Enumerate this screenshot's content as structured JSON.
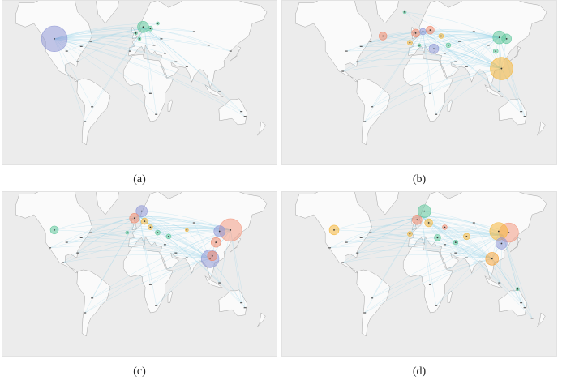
{
  "figure": {
    "panels": [
      {
        "id": "a",
        "caption": "(a)",
        "bubbles": [
          {
            "lon": -112,
            "lat": 50,
            "r": 16,
            "color": "#8f97d6"
          },
          {
            "lon": 10,
            "lat": 58,
            "r": 7,
            "color": "#5ec79b"
          },
          {
            "lon": 20,
            "lat": 57,
            "r": 3,
            "color": "#5ec79b"
          },
          {
            "lon": 0,
            "lat": 54,
            "r": 2,
            "color": "#5ec79b"
          },
          {
            "lon": 30,
            "lat": 60,
            "r": 2,
            "color": "#5ec79b"
          },
          {
            "lon": 5,
            "lat": 50,
            "r": 2,
            "color": "#5ec79b"
          }
        ],
        "hubs": [
          [
            -112,
            50
          ],
          [
            12,
            57
          ]
        ],
        "dots": [
          [
            -75,
            44
          ],
          [
            -95,
            40
          ],
          [
            -80,
            30
          ],
          [
            -62,
            48
          ],
          [
            25,
            45
          ],
          [
            40,
            38
          ],
          [
            55,
            30
          ],
          [
            70,
            25
          ],
          [
            100,
            45
          ],
          [
            130,
            40
          ],
          [
            150,
            -30
          ],
          [
            -60,
            -20
          ],
          [
            -70,
            -35
          ],
          [
            20,
            -5
          ],
          [
            28,
            -28
          ],
          [
            115,
            -3
          ],
          [
            145,
            -25
          ],
          [
            -8,
            40
          ],
          [
            35,
            50
          ],
          [
            80,
            55
          ]
        ]
      },
      {
        "id": "b",
        "caption": "(b)",
        "bubbles": [
          {
            "lon": 118,
            "lat": 23,
            "r": 14,
            "color": "#f5b63a"
          },
          {
            "lon": 115,
            "lat": 51,
            "r": 8,
            "color": "#5ec79b"
          },
          {
            "lon": 125,
            "lat": 50,
            "r": 6,
            "color": "#5ec79b"
          },
          {
            "lon": 110,
            "lat": 40,
            "r": 3,
            "color": "#5ec79b"
          },
          {
            "lon": 0,
            "lat": 54,
            "r": 5,
            "color": "#f08a6d"
          },
          {
            "lon": 10,
            "lat": 55,
            "r": 4,
            "color": "#8f97d6"
          },
          {
            "lon": 20,
            "lat": 56,
            "r": 5,
            "color": "#f08a6d"
          },
          {
            "lon": 25,
            "lat": 42,
            "r": 6,
            "color": "#8f97d6"
          },
          {
            "lon": -45,
            "lat": 52,
            "r": 5,
            "color": "#f08a6d"
          },
          {
            "lon": 35,
            "lat": 52,
            "r": 3,
            "color": "#f5b63a"
          },
          {
            "lon": 45,
            "lat": 45,
            "r": 3,
            "color": "#5ec79b"
          },
          {
            "lon": -8,
            "lat": 47,
            "r": 3,
            "color": "#f5b63a"
          },
          {
            "lon": 5,
            "lat": 45,
            "r": 2,
            "color": "#5ec79b"
          },
          {
            "lon": -15,
            "lat": 66,
            "r": 2,
            "color": "#5ec79b"
          }
        ],
        "hubs": [
          [
            118,
            23
          ],
          [
            115,
            51
          ],
          [
            10,
            55
          ]
        ],
        "dots": [
          [
            -75,
            44
          ],
          [
            -95,
            40
          ],
          [
            -80,
            30
          ],
          [
            -62,
            48
          ],
          [
            40,
            38
          ],
          [
            55,
            30
          ],
          [
            70,
            25
          ],
          [
            100,
            45
          ],
          [
            150,
            -30
          ],
          [
            -60,
            -20
          ],
          [
            -70,
            -35
          ],
          [
            20,
            -5
          ],
          [
            28,
            -28
          ],
          [
            115,
            -3
          ],
          [
            145,
            -25
          ],
          [
            80,
            55
          ],
          [
            60,
            48
          ],
          [
            -100,
            20
          ]
        ]
      },
      {
        "id": "c",
        "caption": "(c)",
        "bubbles": [
          {
            "lon": 130,
            "lat": 50,
            "r": 14,
            "color": "#f39b83"
          },
          {
            "lon": 115,
            "lat": 49,
            "r": 7,
            "color": "#8f97d6"
          },
          {
            "lon": 110,
            "lat": 40,
            "r": 6,
            "color": "#f08a6d"
          },
          {
            "lon": 102,
            "lat": 24,
            "r": 11,
            "color": "#8f97d6"
          },
          {
            "lon": 105,
            "lat": 27,
            "r": 6,
            "color": "#f08a6d"
          },
          {
            "lon": 8,
            "lat": 62,
            "r": 7,
            "color": "#8f97d6"
          },
          {
            "lon": -2,
            "lat": 58,
            "r": 6,
            "color": "#f08a6d"
          },
          {
            "lon": 12,
            "lat": 56,
            "r": 4,
            "color": "#f5b63a"
          },
          {
            "lon": -112,
            "lat": 50,
            "r": 5,
            "color": "#5ec79b"
          },
          {
            "lon": 30,
            "lat": 48,
            "r": 3,
            "color": "#5ec79b"
          },
          {
            "lon": 20,
            "lat": 52,
            "r": 3,
            "color": "#f5b63a"
          },
          {
            "lon": 45,
            "lat": 45,
            "r": 3,
            "color": "#5ec79b"
          },
          {
            "lon": 70,
            "lat": 50,
            "r": 2,
            "color": "#f5b63a"
          },
          {
            "lon": -12,
            "lat": 48,
            "r": 2,
            "color": "#5ec79b"
          }
        ],
        "hubs": [
          [
            130,
            50
          ],
          [
            102,
            24
          ],
          [
            5,
            59
          ]
        ],
        "dots": [
          [
            -75,
            44
          ],
          [
            -95,
            40
          ],
          [
            -80,
            30
          ],
          [
            -62,
            48
          ],
          [
            40,
            38
          ],
          [
            55,
            30
          ],
          [
            70,
            25
          ],
          [
            150,
            -30
          ],
          [
            -60,
            -20
          ],
          [
            -70,
            -35
          ],
          [
            20,
            -5
          ],
          [
            28,
            -28
          ],
          [
            115,
            -3
          ],
          [
            145,
            -25
          ],
          [
            80,
            55
          ],
          [
            -100,
            20
          ],
          [
            -118,
            35
          ]
        ]
      },
      {
        "id": "d",
        "caption": "(d)",
        "bubbles": [
          {
            "lon": 128,
            "lat": 48,
            "r": 12,
            "color": "#f39b83"
          },
          {
            "lon": 114,
            "lat": 49,
            "r": 11,
            "color": "#f5b63a"
          },
          {
            "lon": 118,
            "lat": 39,
            "r": 7,
            "color": "#8f97d6"
          },
          {
            "lon": 105,
            "lat": 24,
            "r": 8,
            "color": "#f5a43a"
          },
          {
            "lon": 12,
            "lat": 62,
            "r": 8,
            "color": "#5ec79b"
          },
          {
            "lon": 2,
            "lat": 57,
            "r": 6,
            "color": "#f08a6d"
          },
          {
            "lon": 18,
            "lat": 55,
            "r": 5,
            "color": "#f5b63a"
          },
          {
            "lon": -112,
            "lat": 50,
            "r": 6,
            "color": "#f5b63a"
          },
          {
            "lon": 70,
            "lat": 45,
            "r": 4,
            "color": "#f5b63a"
          },
          {
            "lon": 30,
            "lat": 44,
            "r": 4,
            "color": "#5ec79b"
          },
          {
            "lon": 40,
            "lat": 52,
            "r": 3,
            "color": "#f08a6d"
          },
          {
            "lon": 55,
            "lat": 40,
            "r": 3,
            "color": "#5ec79b"
          },
          {
            "lon": -8,
            "lat": 47,
            "r": 3,
            "color": "#f5b63a"
          },
          {
            "lon": 140,
            "lat": -10,
            "r": 2,
            "color": "#5ec79b"
          }
        ],
        "hubs": [
          [
            120,
            46
          ],
          [
            105,
            24
          ],
          [
            8,
            59
          ]
        ],
        "dots": [
          [
            -75,
            44
          ],
          [
            -95,
            40
          ],
          [
            -80,
            30
          ],
          [
            -62,
            48
          ],
          [
            40,
            38
          ],
          [
            55,
            30
          ],
          [
            70,
            25
          ],
          [
            150,
            -30
          ],
          [
            -60,
            -20
          ],
          [
            -70,
            -35
          ],
          [
            20,
            -5
          ],
          [
            28,
            -28
          ],
          [
            115,
            -3
          ],
          [
            145,
            -25
          ],
          [
            80,
            55
          ],
          [
            -100,
            20
          ],
          [
            -118,
            35
          ],
          [
            160,
            -40
          ]
        ]
      }
    ]
  }
}
